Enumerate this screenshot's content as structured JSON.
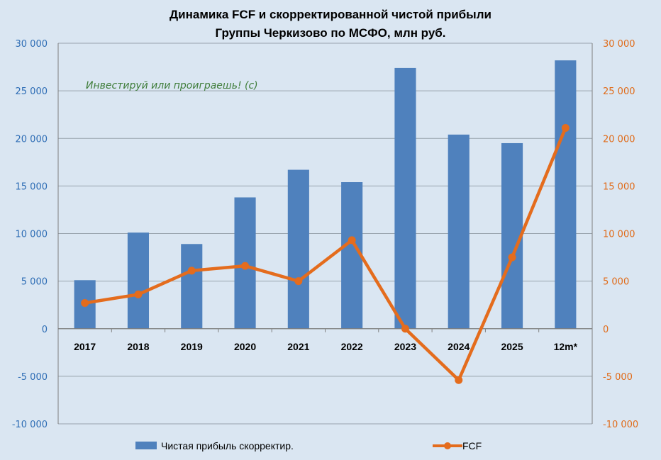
{
  "chart_data": {
    "type": "bar",
    "title": [
      "Динамика FCF и скорректированной чистой прибыли",
      "Группы Черкизово по МСФО, млн руб."
    ],
    "annotation": "Инвестируй или проиграешь! (с)",
    "categories": [
      "2017",
      "2018",
      "2019",
      "2020",
      "2021",
      "2022",
      "2023",
      "2024",
      "2025",
      "12m*"
    ],
    "series": [
      {
        "name": "Чистая прибыль скорректир.",
        "type": "bar",
        "axis": "left",
        "color": "#4f81bd",
        "values": [
          5100,
          10100,
          8900,
          13800,
          16700,
          15400,
          27400,
          20400,
          19500,
          28200
        ]
      },
      {
        "name": "FCF",
        "type": "line",
        "axis": "right",
        "color": "#e46c1d",
        "values": [
          2700,
          3600,
          6100,
          6600,
          5000,
          9300,
          0,
          -5400,
          7500,
          21100
        ]
      }
    ],
    "y_left": {
      "min": -10000,
      "max": 30000,
      "step": 5000,
      "tick_labels": [
        "-10 000",
        "-5 000",
        "0",
        "5 000",
        "10 000",
        "15 000",
        "20 000",
        "25 000",
        "30 000"
      ]
    },
    "y_right": {
      "min": -10000,
      "max": 30000,
      "step": 5000,
      "tick_labels": [
        "-10 000",
        "-5 000",
        "0",
        "5 000",
        "10 000",
        "15 000",
        "20 000",
        "25 000",
        "30 000"
      ]
    },
    "grid": true,
    "legend": "bottom"
  }
}
